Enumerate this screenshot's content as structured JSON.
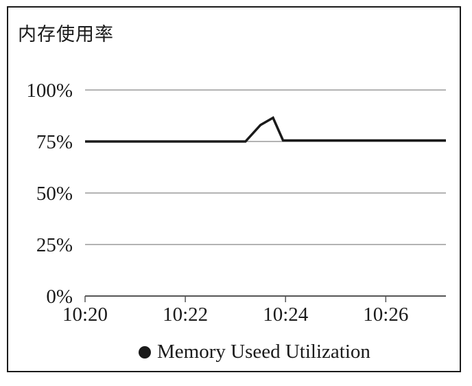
{
  "chart_data": {
    "type": "line",
    "title": "内存使用率",
    "xlabel": "",
    "ylabel": "",
    "x_ticks": [
      "10:20",
      "10:22",
      "10:24",
      "10:26"
    ],
    "y_ticks": [
      "0%",
      "25%",
      "50%",
      "75%",
      "100%"
    ],
    "xlim": [
      0,
      7.2
    ],
    "ylim": [
      0,
      100
    ],
    "grid": true,
    "legend_position": "bottom-center",
    "series": [
      {
        "name": "Memory Useed Utilization",
        "color": "#1a1a1a",
        "x": [
          0,
          3.2,
          3.5,
          3.75,
          3.95,
          7.2
        ],
        "values": [
          75,
          75,
          83,
          86.5,
          75.5,
          75.5
        ]
      }
    ]
  }
}
